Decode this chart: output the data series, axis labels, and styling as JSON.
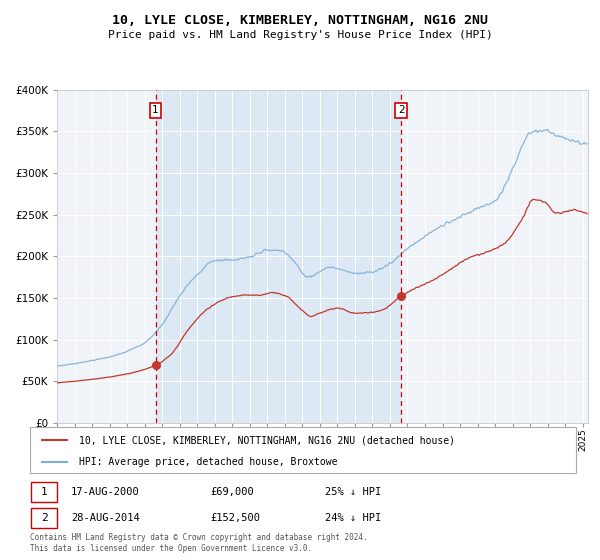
{
  "title1": "10, LYLE CLOSE, KIMBERLEY, NOTTINGHAM, NG16 2NU",
  "title2": "Price paid vs. HM Land Registry's House Price Index (HPI)",
  "legend_line1": "10, LYLE CLOSE, KIMBERLEY, NOTTINGHAM, NG16 2NU (detached house)",
  "legend_line2": "HPI: Average price, detached house, Broxtowe",
  "sale1_date": "17-AUG-2000",
  "sale1_price": 69000,
  "sale1_label": "25% ↓ HPI",
  "sale2_date": "28-AUG-2014",
  "sale2_price": 152500,
  "sale2_label": "24% ↓ HPI",
  "footer": "Contains HM Land Registry data © Crown copyright and database right 2024.\nThis data is licensed under the Open Government Licence v3.0.",
  "hpi_color": "#7bafd4",
  "price_color": "#c0392b",
  "bg_fill": "#dce9f5",
  "vline_color": "#cc0000",
  "grid_color": "#cccccc",
  "chart_bg": "#f0f4f8",
  "ylim": [
    0,
    400000
  ],
  "sale1_year": 2000.625,
  "sale2_year": 2014.65,
  "xlim_left": 1995.0,
  "xlim_right": 2025.3
}
